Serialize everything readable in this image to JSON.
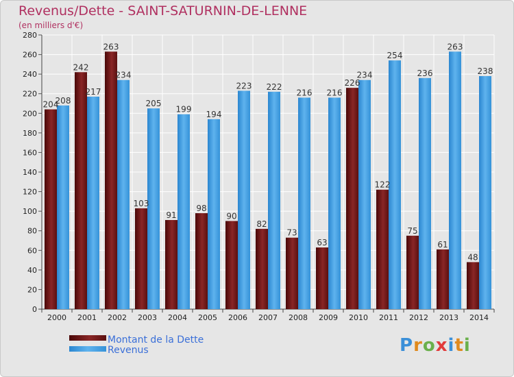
{
  "header": {
    "title": "Revenus/Dette - SAINT-SATURNIN-DE-LENNE",
    "subtitle": "(en milliers d'€)"
  },
  "logo": {
    "text": "Proxiti"
  },
  "chart_data": {
    "type": "bar",
    "title": "Revenus/Dette - SAINT-SATURNIN-DE-LENNE",
    "subtitle": "(en milliers d'€)",
    "categories": [
      "2000",
      "2001",
      "2002",
      "2003",
      "2004",
      "2005",
      "2006",
      "2007",
      "2008",
      "2009",
      "2010",
      "2011",
      "2012",
      "2013",
      "2014"
    ],
    "series": [
      {
        "name": "Montant de la Dette",
        "color": "#7a1a1a",
        "values": [
          204,
          242,
          263,
          103,
          91,
          98,
          90,
          82,
          73,
          63,
          226,
          122,
          75,
          61,
          48
        ]
      },
      {
        "name": "Revenus",
        "color": "#3d9be0",
        "values": [
          208,
          217,
          234,
          205,
          199,
          194,
          223,
          222,
          216,
          216,
          234,
          254,
          236,
          263,
          238
        ]
      }
    ],
    "ylim": [
      0,
      280
    ],
    "yticks": [
      0,
      20,
      40,
      60,
      80,
      100,
      120,
      140,
      160,
      180,
      200,
      220,
      240,
      260,
      280
    ],
    "grid": true,
    "legend": "bottom-left"
  }
}
